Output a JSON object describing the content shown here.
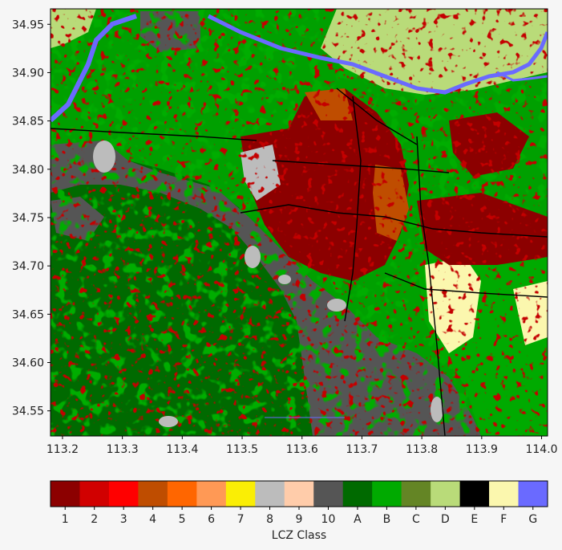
{
  "map": {
    "x_ticks": [
      "113.2",
      "113.3",
      "113.4",
      "113.5",
      "113.6",
      "113.7",
      "113.8",
      "113.9",
      "114.0"
    ],
    "y_ticks": [
      "34.95",
      "34.90",
      "34.85",
      "34.80",
      "34.75",
      "34.70",
      "34.65",
      "34.60",
      "34.55"
    ],
    "x_tick_values": [
      113.2,
      113.3,
      113.4,
      113.5,
      113.6,
      113.7,
      113.8,
      113.9,
      114.0
    ],
    "y_tick_values": [
      34.95,
      34.9,
      34.85,
      34.8,
      34.75,
      34.7,
      34.65,
      34.6,
      34.55
    ],
    "x_range": [
      113.18,
      114.01
    ],
    "y_range": [
      34.524,
      34.966
    ]
  },
  "legend": {
    "title": "LCZ Class",
    "classes": [
      {
        "label": "1",
        "color": "#8c0000"
      },
      {
        "label": "2",
        "color": "#d10000"
      },
      {
        "label": "3",
        "color": "#ff0000"
      },
      {
        "label": "4",
        "color": "#bf4d00"
      },
      {
        "label": "5",
        "color": "#ff6600"
      },
      {
        "label": "6",
        "color": "#ff9955"
      },
      {
        "label": "7",
        "color": "#faee05"
      },
      {
        "label": "8",
        "color": "#bcbcbc"
      },
      {
        "label": "9",
        "color": "#ffccaa"
      },
      {
        "label": "10",
        "color": "#555555"
      },
      {
        "label": "A",
        "color": "#006a00"
      },
      {
        "label": "B",
        "color": "#00aa00"
      },
      {
        "label": "C",
        "color": "#648525"
      },
      {
        "label": "D",
        "color": "#b9db79"
      },
      {
        "label": "E",
        "color": "#000000"
      },
      {
        "label": "F",
        "color": "#fbf7ae"
      },
      {
        "label": "G",
        "color": "#6a6aff"
      }
    ]
  }
}
